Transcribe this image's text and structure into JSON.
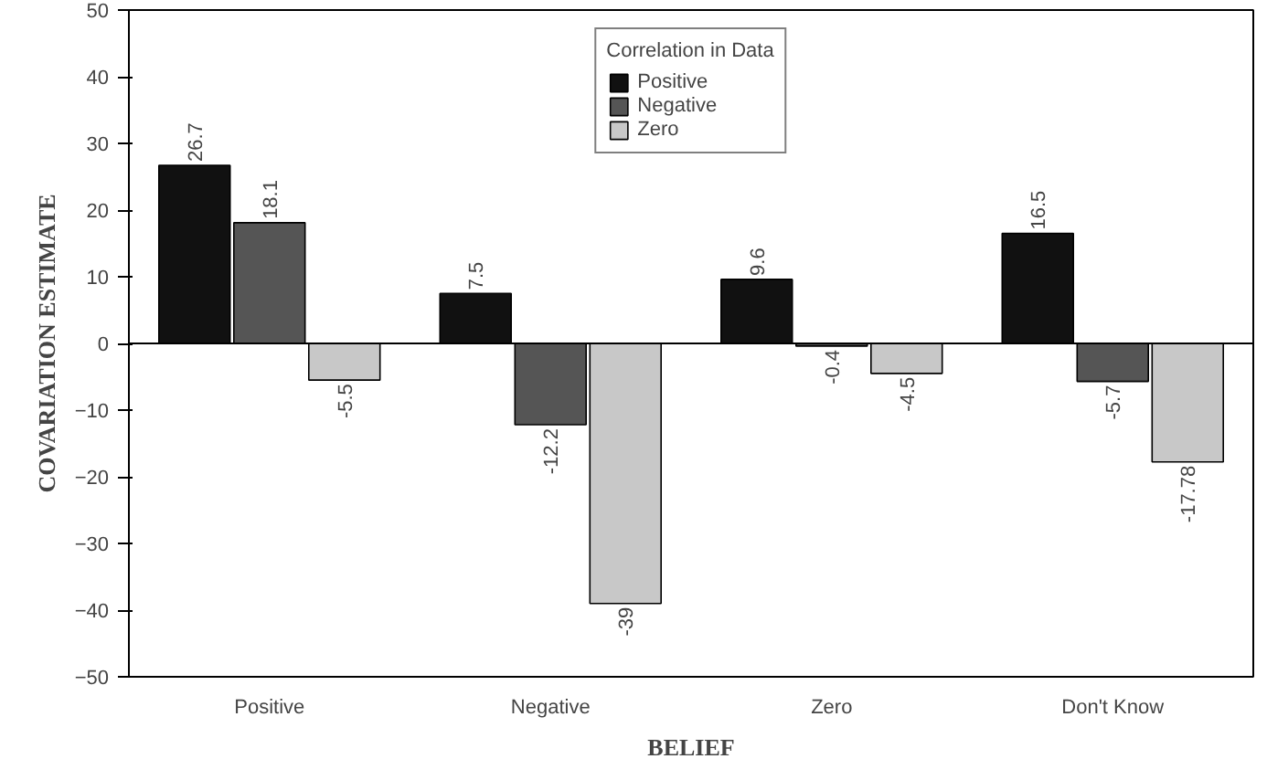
{
  "chart_data": {
    "type": "bar",
    "xlabel": "BELIEF",
    "ylabel": "COVARIATION ESTIMATE",
    "legend_title": "Correlation in Data",
    "categories": [
      "Positive",
      "Negative",
      "Zero",
      "Don't Know"
    ],
    "series": [
      {
        "name": "Positive",
        "color": "#111111",
        "values": [
          26.7,
          7.5,
          9.6,
          16.5
        ],
        "value_labels": [
          "26.7",
          "7.5",
          "9.6",
          "16.5"
        ]
      },
      {
        "name": "Negative",
        "color": "#555555",
        "values": [
          18.1,
          -12.2,
          -0.4,
          -5.7
        ],
        "value_labels": [
          "18.1",
          "-12.2",
          "-0.4",
          "-5.7"
        ]
      },
      {
        "name": "Zero",
        "color": "#c8c8c8",
        "values": [
          -5.5,
          -39,
          -4.5,
          -17.78
        ],
        "value_labels": [
          "-5.5",
          "-39",
          "-4.5",
          "-17.78"
        ]
      }
    ],
    "ylim": [
      -50,
      50
    ],
    "yticks": [
      -50,
      -40,
      -30,
      -20,
      -10,
      0,
      10,
      20,
      30,
      40,
      50
    ],
    "ref_lines": [
      {
        "axis": "y",
        "value": 0
      }
    ],
    "grid": false,
    "legend": "top"
  }
}
